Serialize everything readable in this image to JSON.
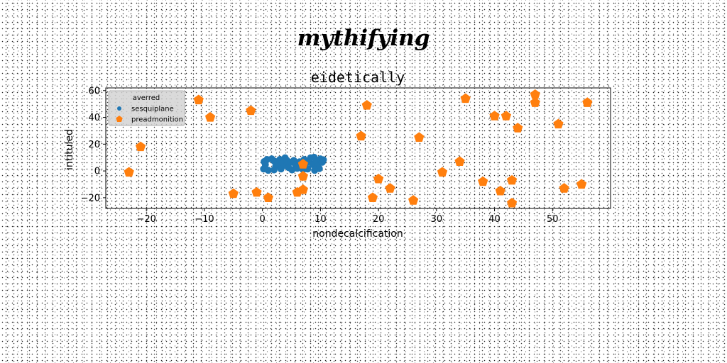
{
  "page": {
    "title": "mythifying"
  },
  "chart_data": {
    "type": "scatter",
    "title": "eidetically",
    "xlabel": "nondecalcification",
    "ylabel": "intituled",
    "xlim": [
      -27,
      60
    ],
    "ylim": [
      -28,
      62
    ],
    "xticks": [
      -20,
      -10,
      0,
      10,
      20,
      30,
      40,
      50
    ],
    "yticks": [
      -20,
      0,
      20,
      40,
      60
    ],
    "grid": false,
    "legend": {
      "title": "averred",
      "position": "top-left"
    },
    "series": [
      {
        "name": "sesquiplane",
        "color": "#1f77b4",
        "marker": "circle",
        "points": [
          [
            0.3,
            7
          ],
          [
            0.8,
            8.5
          ],
          [
            0.5,
            4.8
          ],
          [
            0.2,
            1.5
          ],
          [
            1.0,
            0.5
          ],
          [
            1.6,
            9
          ],
          [
            2.0,
            7.5
          ],
          [
            2.3,
            3.6
          ],
          [
            2.7,
            5
          ],
          [
            2.0,
            0.8
          ],
          [
            3.0,
            8.5
          ],
          [
            3.2,
            1.5
          ],
          [
            3.6,
            6
          ],
          [
            3.9,
            9.8
          ],
          [
            4.2,
            8
          ],
          [
            4.1,
            4
          ],
          [
            4.5,
            2.5
          ],
          [
            4.9,
            6.5
          ],
          [
            5.1,
            0.8
          ],
          [
            5.4,
            7.8
          ],
          [
            5.7,
            4.8
          ],
          [
            6.0,
            2.0
          ],
          [
            6.4,
            6.8
          ],
          [
            6.8,
            4.2
          ],
          [
            7.2,
            8.5
          ],
          [
            7.5,
            5.8
          ],
          [
            7.8,
            1.5
          ],
          [
            8.1,
            7.8
          ],
          [
            8.3,
            9.8
          ],
          [
            8.6,
            4.8
          ],
          [
            8.9,
            10.2
          ],
          [
            9.1,
            5.5
          ],
          [
            9.3,
            7.8
          ],
          [
            9.5,
            3.5
          ],
          [
            9.8,
            1.8
          ],
          [
            10.0,
            9.0
          ],
          [
            10.3,
            6.5
          ],
          [
            10.5,
            8.3
          ],
          [
            9.0,
            0.5
          ],
          [
            7.0,
            1.0
          ]
        ]
      },
      {
        "name": "preadmonition",
        "color": "#ff7f0e",
        "marker": "pentagon",
        "points": [
          [
            -23,
            -1
          ],
          [
            -21,
            18
          ],
          [
            -11,
            53
          ],
          [
            -9,
            40
          ],
          [
            -5,
            -17
          ],
          [
            -2,
            45
          ],
          [
            -1,
            -16
          ],
          [
            1,
            -20
          ],
          [
            6,
            -16
          ],
          [
            7,
            -14
          ],
          [
            7,
            -4
          ],
          [
            7,
            5
          ],
          [
            17,
            26
          ],
          [
            18,
            49
          ],
          [
            19,
            -20
          ],
          [
            20,
            -6
          ],
          [
            22,
            -13
          ],
          [
            26,
            -22
          ],
          [
            27,
            25
          ],
          [
            31,
            -1
          ],
          [
            34,
            7
          ],
          [
            35,
            54
          ],
          [
            38,
            -8
          ],
          [
            40,
            41
          ],
          [
            41,
            -15
          ],
          [
            42,
            41
          ],
          [
            43,
            -7
          ],
          [
            43,
            -24
          ],
          [
            44,
            32
          ],
          [
            47,
            57
          ],
          [
            47,
            51
          ],
          [
            51,
            35
          ],
          [
            52,
            -13
          ],
          [
            55,
            -10
          ],
          [
            56,
            51
          ]
        ]
      }
    ]
  }
}
